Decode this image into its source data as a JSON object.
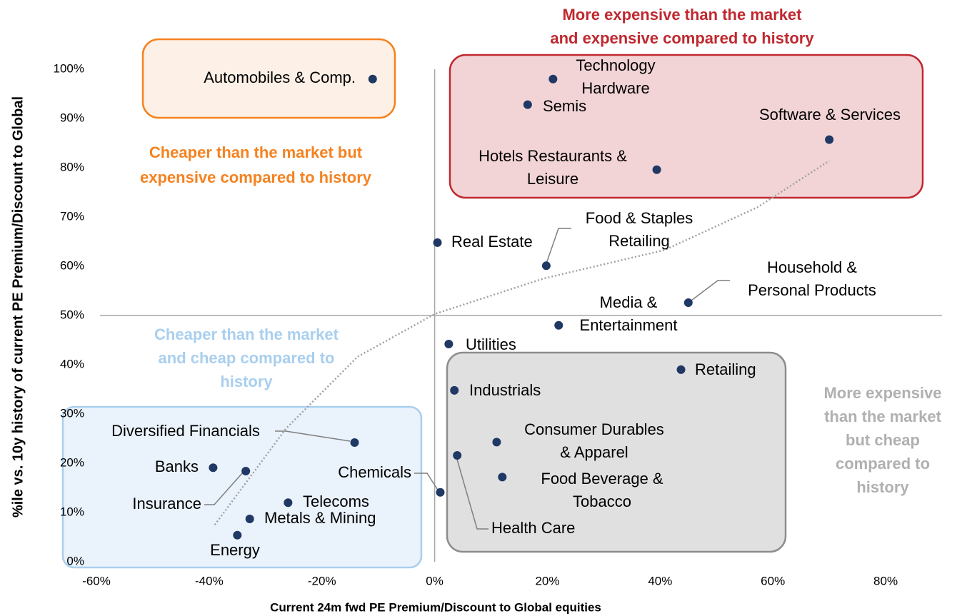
{
  "chart_data": {
    "type": "scatter",
    "x_label": "Current 24m fwd PE Premium/Discount to Global  equities",
    "y_label": "%ile vs. 10y history of current PE Premium/Discount to Global",
    "labels": [
      [
        "Automobiles & Comp."
      ],
      [
        "Technology",
        "Hardware"
      ],
      [
        "Semis"
      ],
      [
        "Software & Services"
      ],
      [
        "Hotels Restaurants &",
        "Leisure"
      ],
      [
        "Real Estate"
      ],
      [
        "Food & Staples",
        "Retailing"
      ],
      [
        "Household &",
        "Personal Products"
      ],
      [
        "Media &",
        "Entertainment"
      ],
      [
        "Utilities"
      ],
      [
        "Retailing"
      ],
      [
        "Industrials"
      ],
      [
        "Consumer Durables",
        "& Apparel"
      ],
      [
        "Diversified Financials"
      ],
      [
        "Health Care"
      ],
      [
        "Food Beverage &",
        "Tobacco"
      ],
      [
        "Banks"
      ],
      [
        "Insurance"
      ],
      [
        "Chemicals"
      ],
      [
        "Telecoms"
      ],
      [
        "Metals & Mining"
      ],
      [
        "Energy"
      ]
    ],
    "x": [
      -11,
      21,
      16.5,
      70,
      39.4,
      0.5,
      19.8,
      45,
      22,
      2.5,
      43.7,
      3.5,
      11,
      -14.2,
      4,
      12,
      -39.3,
      -33.5,
      1,
      -26,
      -32.8,
      -35
    ],
    "values": [
      98,
      98,
      92.8,
      85.7,
      79.6,
      64.8,
      60.1,
      52.6,
      48,
      44.2,
      39,
      34.8,
      24.3,
      24.2,
      21.6,
      17.2,
      19.1,
      18.4,
      14.1,
      12,
      8.7,
      5.4
    ],
    "color": "#1f3864",
    "trendline": {
      "x": [
        -39,
        -26.4,
        -13.7,
        0,
        19.3,
        40.8,
        57.3,
        70
      ],
      "y": [
        7.5,
        27,
        41.6,
        50.3,
        57.5,
        63.3,
        72,
        81.4
      ],
      "color": "#a0a0a0"
    },
    "reference_lines": {
      "x": 0,
      "y": 50
    },
    "annotations": [
      {
        "text": [
          "More expensive than the market",
          "and expensive compared to history"
        ],
        "color": "#c0282f"
      },
      {
        "text": [
          "Cheaper than the market but",
          "expensive compared to history"
        ],
        "color": "#f58220"
      },
      {
        "text": [
          "Cheaper than the market",
          "and cheap compared to",
          "history"
        ],
        "color": "#a9cfee"
      },
      {
        "text": [
          "More expensive",
          "than the market",
          "but cheap",
          "compared to",
          "history"
        ],
        "color": "#b0b0b0"
      }
    ],
    "xlim": [
      -60,
      90
    ],
    "xticks": [
      {
        "value": -60,
        "label": "-60%"
      },
      {
        "value": -40,
        "label": "-40%"
      },
      {
        "value": -20,
        "label": "-20%"
      },
      {
        "value": 0,
        "label": "0%"
      },
      {
        "value": 20,
        "label": "20%"
      },
      {
        "value": 40,
        "label": "40%"
      },
      {
        "value": 60,
        "label": "60%"
      },
      {
        "value": 80,
        "label": "80%"
      }
    ],
    "ylim": [
      0,
      100
    ],
    "yticks": [
      {
        "value": 0,
        "label": "0%"
      },
      {
        "value": 10,
        "label": "10%"
      },
      {
        "value": 20,
        "label": "20%"
      },
      {
        "value": 30,
        "label": "30%"
      },
      {
        "value": 40,
        "label": "40%"
      },
      {
        "value": 50,
        "label": "50%"
      },
      {
        "value": 60,
        "label": "60%"
      },
      {
        "value": 70,
        "label": "70%"
      },
      {
        "value": 80,
        "label": "80%"
      },
      {
        "value": 90,
        "label": "90%"
      },
      {
        "value": 100,
        "label": "100%"
      }
    ]
  }
}
